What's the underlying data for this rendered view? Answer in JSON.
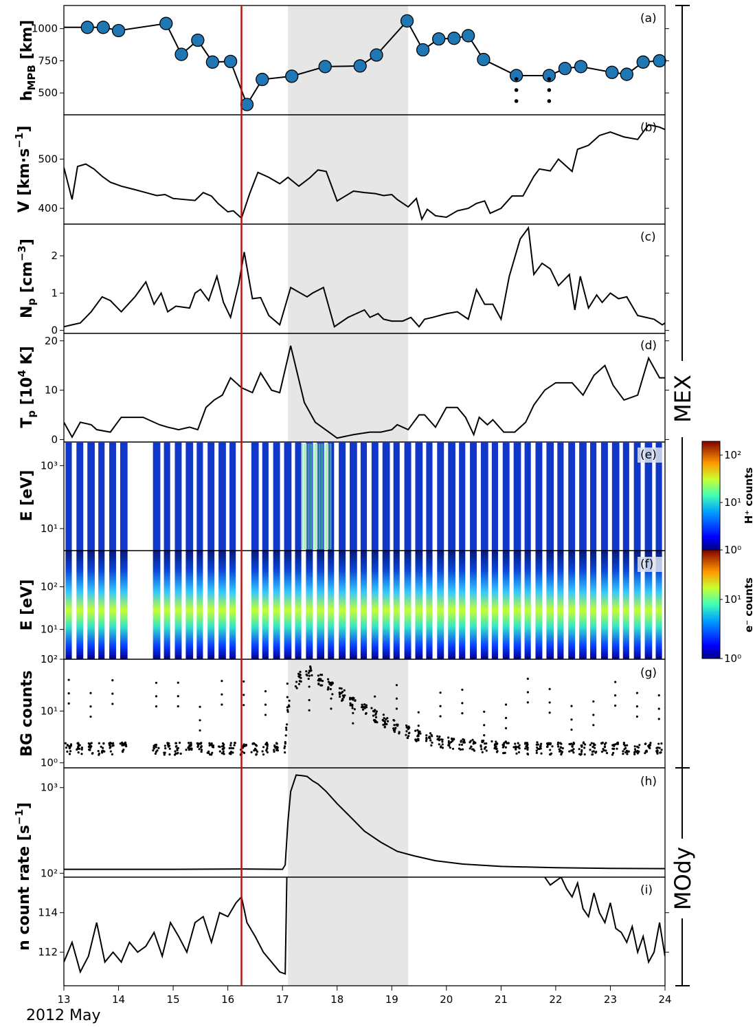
{
  "date_label": "2012 May",
  "instrument_labels": {
    "mex": "MEX",
    "mody": "MOdy"
  },
  "event_marker_day": 16.25,
  "shaded_interval": [
    17.1,
    19.3
  ],
  "colors": {
    "marker_line": "#b01818",
    "shading": "#e6e6e6",
    "dots": "#1f77b4",
    "line": "#000000"
  },
  "chart_data": [
    {
      "type": "scatter",
      "panel": "(a)",
      "ylabel": "h_MPB [km]",
      "ylim": [
        330,
        1180
      ],
      "yticks": [
        500,
        750,
        1000
      ],
      "series": [
        {
          "x": [
            13.0,
            13.43,
            13.72,
            14.0,
            14.87,
            15.15,
            15.45,
            15.72,
            16.05,
            16.35,
            16.63,
            17.17,
            17.78,
            18.42,
            18.72,
            19.28,
            19.57,
            19.86,
            20.14,
            20.4,
            20.68,
            21.28,
            21.88,
            22.17,
            22.46,
            23.03,
            23.3,
            23.6,
            23.9,
            24.0
          ],
          "y": [
            1010,
            1010,
            1010,
            985,
            1040,
            800,
            910,
            740,
            745,
            410,
            605,
            630,
            705,
            710,
            795,
            1060,
            835,
            920,
            925,
            945,
            760,
            635,
            635,
            690,
            705,
            660,
            645,
            740,
            750,
            750
          ],
          "marker": [
            false,
            true,
            true,
            true,
            true,
            true,
            true,
            true,
            true,
            true,
            true,
            true,
            true,
            true,
            true,
            true,
            true,
            true,
            true,
            true,
            true,
            true,
            true,
            true,
            true,
            true,
            true,
            true,
            true,
            false
          ]
        }
      ],
      "lower_limit_markers": [
        21.28,
        21.88
      ]
    },
    {
      "type": "line",
      "panel": "(b)",
      "ylabel": "V [km·s⁻¹]",
      "ylim": [
        368,
        590
      ],
      "yticks": [
        400,
        500
      ],
      "x": [
        13.0,
        13.15,
        13.25,
        13.4,
        13.55,
        13.7,
        13.85,
        14.05,
        14.3,
        14.5,
        14.7,
        14.85,
        15.0,
        15.2,
        15.4,
        15.55,
        15.7,
        15.82,
        16.0,
        16.1,
        16.25,
        16.4,
        16.55,
        16.75,
        16.95,
        17.1,
        17.3,
        17.5,
        17.65,
        17.8,
        18.0,
        18.3,
        18.5,
        18.7,
        18.85,
        19.0,
        19.1,
        19.3,
        19.45,
        19.55,
        19.65,
        19.8,
        20.0,
        20.2,
        20.4,
        20.55,
        20.7,
        20.8,
        20.9,
        21.0,
        21.2,
        21.4,
        21.6,
        21.7,
        21.9,
        22.05,
        22.3,
        22.4,
        22.6,
        22.8,
        23.0,
        23.25,
        23.5,
        23.7,
        23.9,
        24.0
      ],
      "y": [
        483,
        418,
        485,
        490,
        480,
        465,
        453,
        445,
        438,
        432,
        426,
        428,
        420,
        418,
        416,
        432,
        425,
        410,
        393,
        395,
        380,
        430,
        473,
        463,
        450,
        463,
        445,
        462,
        478,
        475,
        415,
        435,
        432,
        430,
        426,
        428,
        418,
        403,
        420,
        378,
        398,
        385,
        382,
        395,
        400,
        410,
        415,
        390,
        395,
        400,
        425,
        425,
        465,
        480,
        476,
        500,
        475,
        520,
        528,
        548,
        555,
        545,
        540,
        570,
        565,
        560
      ],
      "marker_corrections": null
    },
    {
      "type": "line",
      "panel": "(c)",
      "ylabel": "N_p [cm⁻³]",
      "ylim": [
        -0.08,
        2.85
      ],
      "yticks": [
        0,
        1,
        2
      ],
      "x": [
        13.0,
        13.15,
        13.3,
        13.5,
        13.7,
        13.85,
        14.05,
        14.3,
        14.5,
        14.65,
        14.78,
        14.9,
        15.05,
        15.3,
        15.4,
        15.5,
        15.65,
        15.8,
        15.92,
        16.05,
        16.2,
        16.3,
        16.45,
        16.6,
        16.75,
        16.95,
        17.15,
        17.45,
        17.55,
        17.75,
        17.95,
        18.2,
        18.5,
        18.6,
        18.75,
        18.85,
        19.0,
        19.2,
        19.35,
        19.5,
        19.6,
        19.75,
        20.0,
        20.2,
        20.4,
        20.55,
        20.7,
        20.85,
        21.0,
        21.15,
        21.35,
        21.5,
        21.6,
        21.75,
        21.9,
        22.05,
        22.25,
        22.35,
        22.45,
        22.6,
        22.75,
        22.85,
        23.0,
        23.15,
        23.3,
        23.5,
        23.8,
        23.95,
        24.0
      ],
      "y": [
        0.1,
        0.15,
        0.2,
        0.5,
        0.9,
        0.8,
        0.5,
        0.9,
        1.3,
        0.7,
        1.0,
        0.5,
        0.65,
        0.6,
        1.0,
        1.1,
        0.8,
        1.45,
        0.75,
        0.35,
        1.25,
        2.1,
        0.85,
        0.88,
        0.4,
        0.15,
        1.15,
        0.9,
        1.0,
        1.15,
        0.1,
        0.35,
        0.55,
        0.35,
        0.45,
        0.3,
        0.25,
        0.25,
        0.35,
        0.1,
        0.3,
        0.35,
        0.45,
        0.5,
        0.3,
        1.1,
        0.7,
        0.7,
        0.3,
        1.45,
        2.45,
        2.75,
        1.5,
        1.8,
        1.65,
        1.2,
        1.5,
        0.55,
        1.45,
        0.6,
        0.95,
        0.75,
        1.0,
        0.85,
        0.9,
        0.4,
        0.3,
        0.15,
        0.2
      ],
      "marker_corrections": null
    },
    {
      "type": "line",
      "panel": "(d)",
      "ylabel": "T_p [10⁴ K]",
      "ylim": [
        -0.5,
        21.5
      ],
      "yticks": [
        0,
        10,
        20
      ],
      "x": [
        13.0,
        13.15,
        13.3,
        13.5,
        13.6,
        13.85,
        14.05,
        14.3,
        14.45,
        14.75,
        14.9,
        15.1,
        15.3,
        15.45,
        15.6,
        15.75,
        15.9,
        16.05,
        16.25,
        16.45,
        16.6,
        16.8,
        16.95,
        17.15,
        17.4,
        17.6,
        18.0,
        18.3,
        18.6,
        18.8,
        19.0,
        19.1,
        19.3,
        19.5,
        19.6,
        19.8,
        20.0,
        20.2,
        20.35,
        20.5,
        20.6,
        20.75,
        20.85,
        21.05,
        21.25,
        21.45,
        21.6,
        21.8,
        22.0,
        22.3,
        22.5,
        22.7,
        22.9,
        23.05,
        23.25,
        23.5,
        23.7,
        23.9,
        24.0
      ],
      "y": [
        3.5,
        0.5,
        3.5,
        3.0,
        2.0,
        1.5,
        4.5,
        4.5,
        4.5,
        3.0,
        2.5,
        2.0,
        2.5,
        2.0,
        6.5,
        8.0,
        9.0,
        12.5,
        10.5,
        9.5,
        13.5,
        10.0,
        9.5,
        19.0,
        7.5,
        3.5,
        0.3,
        1.0,
        1.5,
        1.5,
        2.0,
        3.0,
        2.0,
        5.0,
        5.0,
        2.5,
        6.5,
        6.5,
        4.5,
        1.0,
        4.5,
        3.0,
        4.0,
        1.5,
        1.5,
        3.5,
        7.0,
        10.0,
        11.5,
        11.5,
        9.0,
        13.0,
        15.0,
        11.0,
        8.0,
        9.0,
        16.5,
        12.5,
        12.5
      ],
      "marker_corrections": null
    },
    {
      "type": "heatmap",
      "panel": "(e)",
      "ylabel": "E [eV]",
      "yscale": "log",
      "ytick_labels": [
        "10³",
        "10¹"
      ],
      "colorbar": {
        "label": "H⁺ counts",
        "ticks": [
          "10⁰",
          "10¹",
          "10²"
        ]
      }
    },
    {
      "type": "heatmap",
      "panel": "(f)",
      "ylabel": "E [eV]",
      "yscale": "log",
      "ytick_labels": [
        "10²",
        "10¹"
      ],
      "colorbar": {
        "label": "e⁻ counts",
        "ticks": [
          "10⁰",
          "10¹"
        ]
      }
    },
    {
      "type": "scatter",
      "panel": "(g)",
      "ylabel": "BG counts",
      "yscale": "log",
      "ytick_labels": [
        "10⁰",
        "10¹",
        "10²"
      ]
    },
    {
      "type": "line",
      "panel": "(h)",
      "ylabel": "n count rate [s⁻¹]",
      "yscale": "log",
      "ytick_labels": [
        "10²",
        "10³"
      ],
      "x": [
        13.0,
        15.0,
        16.25,
        17.0,
        17.05,
        17.1,
        17.15,
        17.25,
        17.35,
        17.45,
        17.55,
        17.65,
        17.8,
        18.0,
        18.25,
        18.5,
        18.8,
        19.1,
        19.4,
        19.8,
        20.3,
        21.0,
        22.0,
        23.0,
        24.0
      ],
      "y": [
        111,
        111,
        112,
        111,
        125,
        400,
        900,
        1400,
        1380,
        1350,
        1200,
        1100,
        900,
        650,
        450,
        310,
        230,
        180,
        160,
        140,
        128,
        120,
        116,
        114,
        113
      ]
    },
    {
      "type": "line",
      "panel": "(i)",
      "ylim": [
        110.3,
        115.8
      ],
      "yticks": [
        112,
        114
      ],
      "x": [
        13.0,
        13.15,
        13.3,
        13.45,
        13.6,
        13.75,
        13.9,
        14.05,
        14.2,
        14.35,
        14.5,
        14.65,
        14.8,
        14.95,
        15.1,
        15.25,
        15.4,
        15.55,
        15.7,
        15.85,
        16.0,
        16.15,
        16.25,
        16.35,
        16.5,
        16.65,
        16.8,
        16.95,
        17.05,
        17.08
      ],
      "y": [
        111.5,
        112.5,
        111.0,
        111.8,
        113.5,
        111.5,
        112.0,
        111.5,
        112.5,
        112.0,
        112.3,
        113.0,
        111.8,
        113.5,
        112.8,
        112.0,
        113.5,
        113.8,
        112.5,
        114.0,
        113.8,
        114.5,
        114.8,
        113.5,
        112.8,
        112.0,
        111.5,
        111.0,
        110.9,
        115.8
      ],
      "x2": [
        21.8,
        21.9,
        22.0,
        22.1,
        22.2,
        22.3,
        22.4,
        22.5,
        22.6,
        22.7,
        22.8,
        22.9,
        23.0,
        23.1,
        23.2,
        23.3,
        23.4,
        23.5,
        23.6,
        23.7,
        23.8,
        23.9,
        24.0
      ],
      "y2": [
        115.8,
        115.4,
        115.6,
        115.8,
        115.2,
        114.8,
        115.5,
        114.2,
        113.8,
        115.0,
        114.0,
        113.5,
        114.5,
        113.2,
        113.0,
        112.5,
        113.3,
        112.0,
        112.8,
        111.5,
        112.0,
        113.5,
        111.8
      ]
    },
    {
      "type": "axis",
      "xlim": [
        13,
        24
      ],
      "xtick_labels": [
        "13",
        "14",
        "15",
        "16",
        "17",
        "18",
        "19",
        "20",
        "21",
        "22",
        "23",
        "24"
      ]
    }
  ]
}
